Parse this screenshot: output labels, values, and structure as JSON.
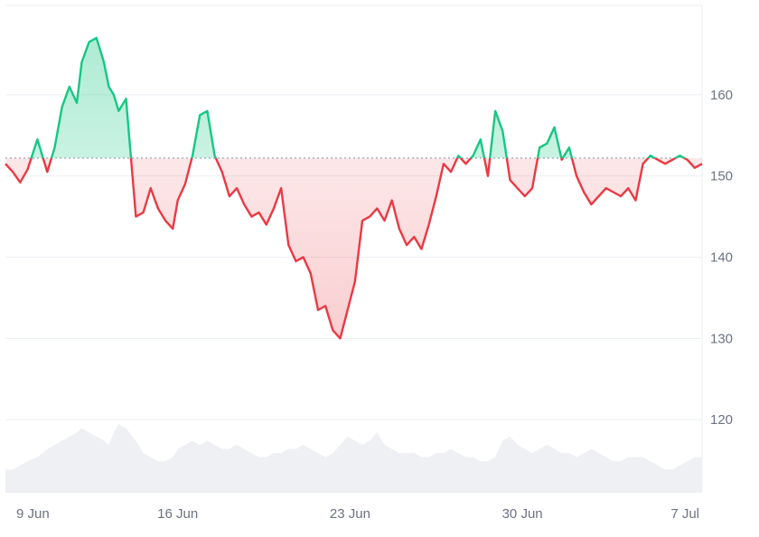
{
  "chart_data": {
    "type": "line",
    "title": "",
    "xlabel": "",
    "ylabel": "",
    "baseline": 152.2,
    "ylim": [
      111,
      171
    ],
    "yticks": [
      120,
      130,
      140,
      150,
      160
    ],
    "xticks": [
      {
        "x": 0.0,
        "label": "9 Jun"
      },
      {
        "x": 7.0,
        "label": "16 Jun"
      },
      {
        "x": 14.0,
        "label": "23 Jun"
      },
      {
        "x": 21.0,
        "label": "30 Jun"
      },
      {
        "x": 28.0,
        "label": "7 Jul"
      }
    ],
    "x": [
      0.0,
      0.3,
      0.6,
      0.9,
      1.3,
      1.7,
      2.0,
      2.3,
      2.6,
      2.9,
      3.1,
      3.4,
      3.7,
      4.0,
      4.2,
      4.4,
      4.6,
      4.9,
      5.3,
      5.6,
      5.9,
      6.2,
      6.5,
      6.8,
      7.0,
      7.3,
      7.6,
      7.9,
      8.2,
      8.5,
      8.8,
      9.1,
      9.4,
      9.7,
      10.0,
      10.3,
      10.6,
      10.9,
      11.2,
      11.5,
      11.8,
      12.1,
      12.4,
      12.7,
      13.0,
      13.3,
      13.6,
      13.9,
      14.2,
      14.5,
      14.8,
      15.1,
      15.4,
      15.7,
      16.0,
      16.3,
      16.6,
      16.9,
      17.2,
      17.5,
      17.8,
      18.1,
      18.4,
      18.7,
      19.0,
      19.3,
      19.6,
      19.9,
      20.2,
      20.5,
      20.8,
      21.1,
      21.4,
      21.7,
      22.0,
      22.3,
      22.6,
      22.9,
      23.2,
      23.5,
      23.8,
      24.1,
      24.4,
      24.7,
      25.0,
      25.3,
      25.6,
      25.9,
      26.2,
      26.5,
      26.8,
      27.1,
      27.4,
      27.7,
      28.0,
      28.3
    ],
    "values": [
      151.5,
      150.5,
      149.2,
      150.8,
      154.5,
      150.5,
      153.5,
      158.5,
      161.0,
      159.0,
      164.0,
      166.5,
      167.0,
      164.0,
      161.0,
      160.0,
      158.0,
      159.5,
      145.0,
      145.5,
      148.5,
      146.0,
      144.5,
      143.5,
      147.0,
      149.0,
      152.5,
      157.5,
      158.0,
      152.5,
      150.5,
      147.5,
      148.5,
      146.5,
      145.0,
      145.5,
      144.0,
      146.0,
      148.5,
      141.5,
      139.5,
      140.0,
      138.0,
      133.5,
      134.0,
      131.0,
      130.0,
      133.5,
      137.0,
      144.5,
      145.0,
      146.0,
      144.5,
      147.0,
      143.5,
      141.5,
      142.5,
      141.0,
      144.0,
      147.5,
      151.5,
      150.5,
      152.5,
      151.5,
      152.5,
      154.5,
      150.0,
      158.0,
      155.5,
      149.5,
      148.5,
      147.5,
      148.5,
      153.5,
      154.0,
      156.0,
      152.0,
      153.5,
      150.0,
      148.0,
      146.5,
      147.5,
      148.5,
      148.0,
      147.5,
      148.5,
      147.0,
      151.5,
      152.5,
      152.0,
      151.5,
      152.0,
      152.5,
      152.0,
      151.0,
      151.5
    ],
    "volume": [
      3,
      3,
      4,
      5,
      6,
      8,
      9,
      10,
      11,
      12,
      13,
      12,
      11,
      10,
      9,
      12,
      14,
      13,
      10,
      7,
      6,
      5,
      5,
      6,
      8,
      9,
      10,
      9,
      10,
      9,
      8,
      8,
      9,
      8,
      7,
      6,
      6,
      7,
      7,
      8,
      8,
      9,
      8,
      7,
      6,
      7,
      9,
      11,
      10,
      9,
      10,
      12,
      9,
      8,
      7,
      7,
      7,
      6,
      6,
      7,
      7,
      8,
      7,
      6,
      6,
      5,
      5,
      6,
      10,
      11,
      9,
      8,
      7,
      8,
      9,
      8,
      7,
      7,
      6,
      7,
      8,
      7,
      6,
      5,
      5,
      6,
      6,
      6,
      5,
      4,
      3,
      3,
      4,
      5,
      6,
      6
    ],
    "colors": {
      "up": "#16c784",
      "down": "#ea3943",
      "up_fill": "#16c784",
      "down_fill": "#ea3943",
      "volume_fill": "#eef0f3",
      "grid": "#eceff3",
      "baseline": "#9ca3af"
    },
    "grid": true,
    "y_axis_position": "right"
  }
}
